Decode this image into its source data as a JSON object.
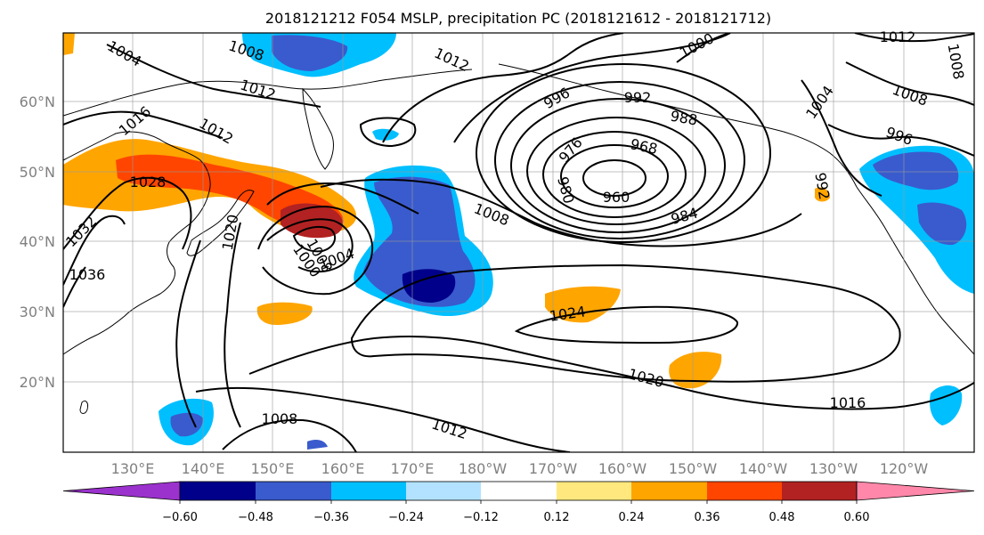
{
  "title": "2018121212 F054 MSLP, precipitation PC (2018121612 - 2018121712)",
  "lon_labels": [
    "130°E",
    "140°E",
    "150°E",
    "160°E",
    "170°E",
    "180°W",
    "170°W",
    "160°W",
    "150°W",
    "140°W",
    "130°W",
    "120°W"
  ],
  "lat_labels": [
    "60°N",
    "50°N",
    "40°N",
    "30°N",
    "20°N"
  ],
  "colorbar": {
    "ticks": [
      "−0.60",
      "−0.48",
      "−0.36",
      "−0.24",
      "−0.12",
      "0.12",
      "0.24",
      "0.36",
      "0.48",
      "0.60"
    ],
    "colors": [
      "#9b32cd",
      "#00008b",
      "#3a5bcd",
      "#00bfff",
      "#b2e2ff",
      "#ffffff",
      "#ffe97f",
      "#ffa500",
      "#ff4500",
      "#b22222",
      "#ff88aa"
    ]
  },
  "contour_labels": [
    {
      "text": "1004",
      "name": "isobar-label-1004-nw"
    },
    {
      "text": "1008",
      "name": "isobar-label-1008-n"
    },
    {
      "text": "1012",
      "name": "isobar-label-1012-n"
    },
    {
      "text": "1016",
      "name": "isobar-label-1016-w"
    },
    {
      "text": "1012",
      "name": "isobar-label-1012-w"
    },
    {
      "text": "1028",
      "name": "isobar-label-1028"
    },
    {
      "text": "1032",
      "name": "isobar-label-1032"
    },
    {
      "text": "1036",
      "name": "isobar-label-1036"
    },
    {
      "text": "1020",
      "name": "isobar-label-1020-w"
    },
    {
      "text": "1000",
      "name": "isobar-label-1000-w"
    },
    {
      "text": "1008",
      "name": "isobar-label-1008-w"
    },
    {
      "text": "1004",
      "name": "isobar-label-1004-w"
    },
    {
      "text": "1008",
      "name": "isobar-label-1008-c"
    },
    {
      "text": "1012",
      "name": "isobar-label-1012-c"
    },
    {
      "text": "996",
      "name": "isobar-label-996"
    },
    {
      "text": "992",
      "name": "isobar-label-992"
    },
    {
      "text": "988",
      "name": "isobar-label-988"
    },
    {
      "text": "976",
      "name": "isobar-label-976"
    },
    {
      "text": "968",
      "name": "isobar-label-968"
    },
    {
      "text": "960",
      "name": "isobar-label-960"
    },
    {
      "text": "984",
      "name": "isobar-label-984"
    },
    {
      "text": "980",
      "name": "isobar-label-980"
    },
    {
      "text": "1000",
      "name": "isobar-label-1000-ne"
    },
    {
      "text": "1012",
      "name": "isobar-label-1012-ne"
    },
    {
      "text": "1008",
      "name": "isobar-label-1008-ne"
    },
    {
      "text": "1004",
      "name": "isobar-label-1004-e"
    },
    {
      "text": "1008",
      "name": "isobar-label-1008-e"
    },
    {
      "text": "996",
      "name": "isobar-label-996-e"
    },
    {
      "text": "992",
      "name": "isobar-label-992-e"
    },
    {
      "text": "1024",
      "name": "isobar-label-1024"
    },
    {
      "text": "1020",
      "name": "isobar-label-1020-c"
    },
    {
      "text": "1016",
      "name": "isobar-label-1016-e"
    },
    {
      "text": "1008",
      "name": "isobar-label-1008-s"
    },
    {
      "text": "1012",
      "name": "isobar-label-1012-s"
    }
  ]
}
